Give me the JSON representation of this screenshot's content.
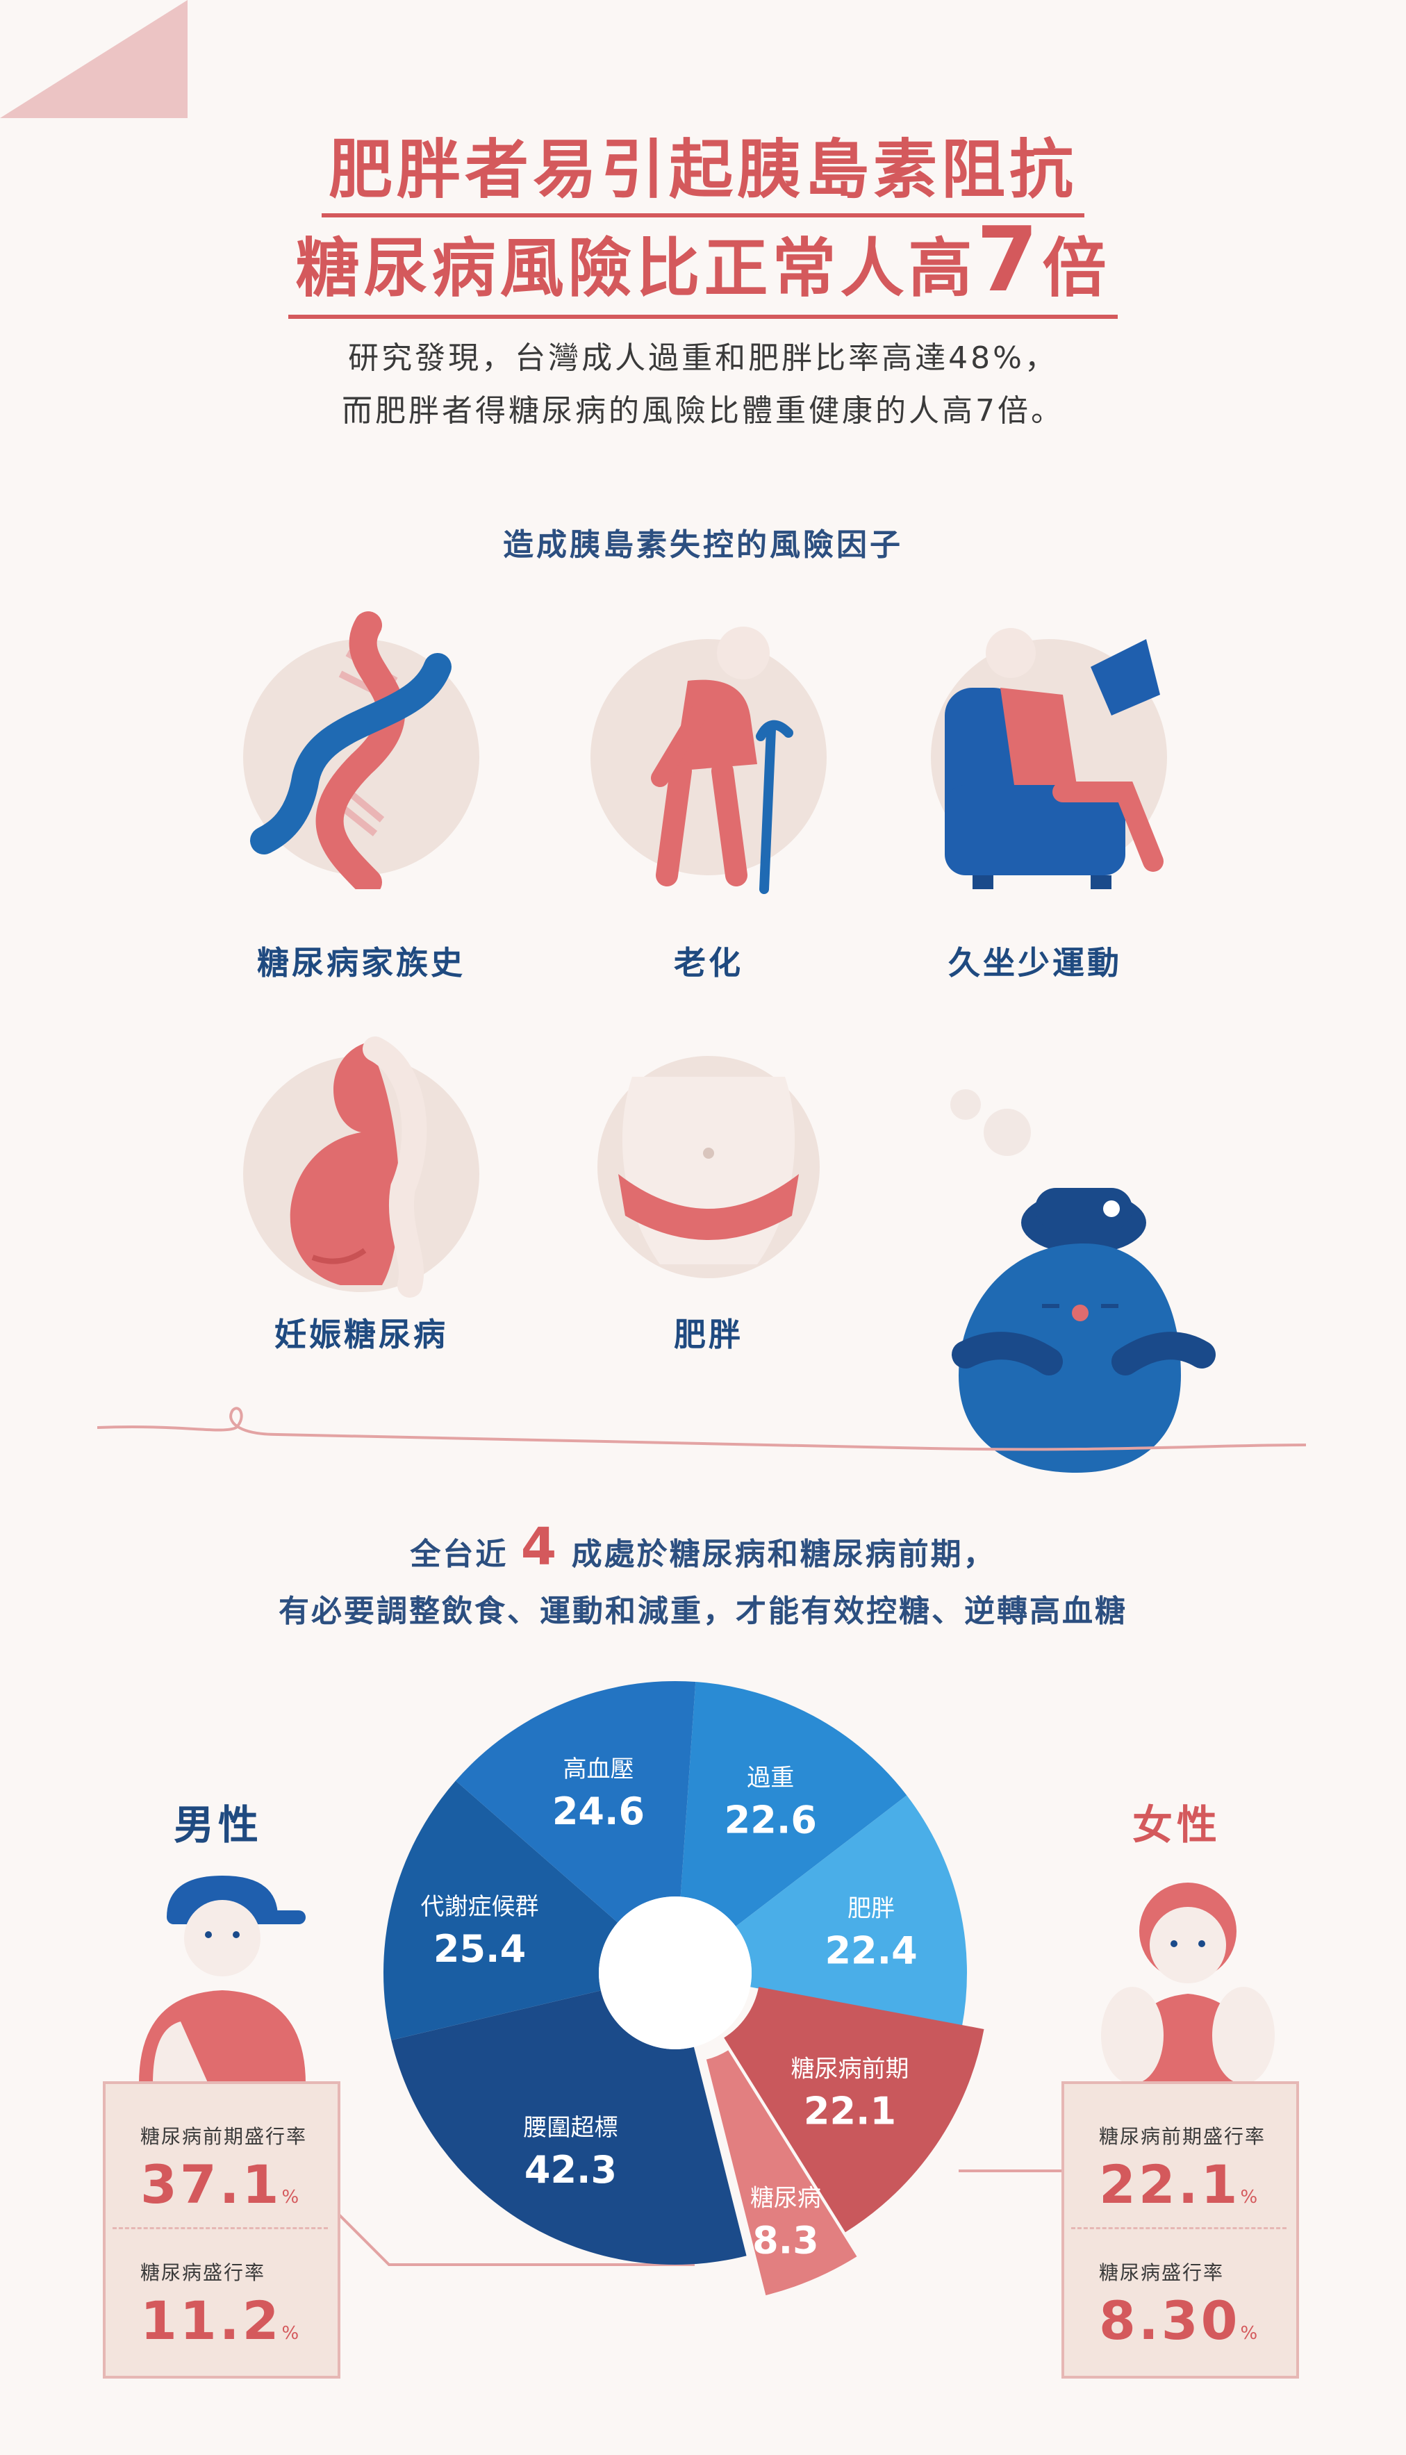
{
  "header": {
    "title_line1": "肥胖者易引起胰島素阻抗",
    "title_line2_text": "糖尿病風險比正常人高",
    "title_line2_number": "7",
    "title_line2_suffix": "倍"
  },
  "intro": {
    "line1": "研究發現，台灣成人過重和肥胖比率高達48%，",
    "line2": "而肥胖者得糖尿病的風險比體重健康的人高7倍。"
  },
  "risk_factors": {
    "heading": "造成胰島素失控的風險因子",
    "items": [
      {
        "label": "糖尿病家族史",
        "icon": "dna-icon"
      },
      {
        "label": "老化",
        "icon": "elderly-with-cane-icon"
      },
      {
        "label": "久坐少運動",
        "icon": "person-on-sofa-icon"
      },
      {
        "label": "妊娠糖尿病",
        "icon": "pregnant-belly-icon"
      },
      {
        "label": "肥胖",
        "icon": "belly-icon"
      }
    ]
  },
  "stat": {
    "line1_prefix": "全台近",
    "line1_number": "4",
    "line1_suffix": "成處於糖尿病和糖尿病前期，",
    "line2": "有必要調整飲食、運動和減重，才能有效控糖、逆轉高血糖"
  },
  "colors": {
    "accent_red": "#d4595c",
    "navy": "#1f4a80",
    "blue_dark": "#1b4b8a",
    "blue_mid": "#1f6ab3",
    "blue_bright": "#2a8bd4",
    "blue_light": "#4aaee8",
    "red_slice": "#c9585c",
    "pink_slice": "#e27f80"
  },
  "male": {
    "label": "男性",
    "prediabetes_label": "糖尿病前期盛行率",
    "prediabetes_value": "37.1",
    "diabetes_label": "糖尿病盛行率",
    "diabetes_value": "11.2",
    "unit": "%"
  },
  "female": {
    "label": "女性",
    "prediabetes_label": "糖尿病前期盛行率",
    "prediabetes_value": "22.1",
    "diabetes_label": "糖尿病盛行率",
    "diabetes_value": "8.30",
    "unit": "%"
  },
  "chart_data": {
    "type": "pie",
    "style": "donut",
    "slices": [
      {
        "label": "過重",
        "value": 22.6,
        "color": "#2a8bd4"
      },
      {
        "label": "肥胖",
        "value": 22.4,
        "color": "#4aaee8"
      },
      {
        "label": "糖尿病前期",
        "value": 22.1,
        "color": "#c9585c"
      },
      {
        "label": "糖尿病",
        "value": 8.3,
        "color": "#e27f80"
      },
      {
        "label": "腰圍超標",
        "value": 42.3,
        "color": "#1b4b8a"
      },
      {
        "label": "代謝症候群",
        "value": 25.4,
        "color": "#1a5ea3"
      },
      {
        "label": "高血壓",
        "value": 24.6,
        "color": "#2374c2"
      }
    ]
  }
}
